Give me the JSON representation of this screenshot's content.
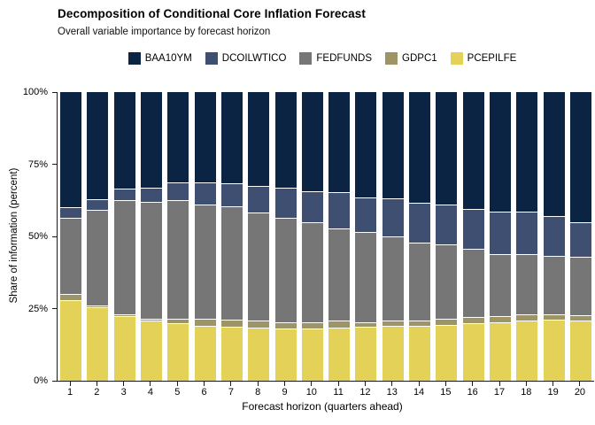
{
  "chart_data": {
    "type": "bar",
    "stacked": true,
    "stack_unit": "percent",
    "title": "Decomposition of Conditional Core Inflation Forecast",
    "subtitle": "Overall variable importance by forecast horizon",
    "xlabel": "Forecast horizon (quarters ahead)",
    "ylabel": "Share of information (percent)",
    "ylim": [
      0,
      100
    ],
    "grid": false,
    "legend_position": "top-center",
    "y_ticks": [
      {
        "label": "0%",
        "value": 0
      },
      {
        "label": "25%",
        "value": 25
      },
      {
        "label": "50%",
        "value": 50
      },
      {
        "label": "75%",
        "value": 75
      },
      {
        "label": "100%",
        "value": 100
      }
    ],
    "categories": [
      "1",
      "2",
      "3",
      "4",
      "5",
      "6",
      "7",
      "8",
      "9",
      "10",
      "11",
      "12",
      "13",
      "14",
      "15",
      "16",
      "17",
      "18",
      "19",
      "20"
    ],
    "stack_order_note": "series listed bottom-to-top of each bar",
    "series": [
      {
        "name": "PCEPILFE",
        "color": "#E3D158",
        "values": [
          28,
          25.5,
          22.5,
          20.8,
          20,
          19,
          18.7,
          18.4,
          18.1,
          18.1,
          18.4,
          18.7,
          19.1,
          19.1,
          19.4,
          19.9,
          20.1,
          21,
          21.2,
          21
        ]
      },
      {
        "name": "GDPC1",
        "color": "#9E9566",
        "values": [
          2,
          0.7,
          0.5,
          0.7,
          1.4,
          2.5,
          2.5,
          2.6,
          2.3,
          2.1,
          2.6,
          1.7,
          1.9,
          1.9,
          2.1,
          2.3,
          2.4,
          2,
          1.8,
          1.8
        ]
      },
      {
        "name": "FEDFUNDS",
        "color": "#767676",
        "values": [
          26.5,
          33,
          39.5,
          40.5,
          41.3,
          39.6,
          39.2,
          37.4,
          36.1,
          34.8,
          31.9,
          31.1,
          28.9,
          26.8,
          25.6,
          23.5,
          21.5,
          21,
          20.2,
          20.1
        ]
      },
      {
        "name": "DCOILWTICO",
        "color": "#3E4F71",
        "values": [
          3.5,
          3.8,
          4,
          5,
          6,
          7.5,
          7.9,
          9.2,
          10.3,
          10.8,
          12.3,
          12,
          13.3,
          13.8,
          14,
          13.9,
          14.5,
          14.5,
          14,
          12
        ]
      },
      {
        "name": "BAA10YM",
        "color": "#0B2443",
        "values": [
          40,
          37,
          33.5,
          33,
          31.3,
          31.4,
          31.7,
          32.4,
          33.2,
          34.2,
          34.8,
          36.5,
          36.8,
          38.4,
          38.9,
          40.4,
          41.5,
          41.5,
          42.8,
          45.1
        ]
      }
    ]
  },
  "legend": {
    "items": [
      {
        "label": "BAA10YM",
        "color": "#0B2443"
      },
      {
        "label": "DCOILWTICO",
        "color": "#3E4F71"
      },
      {
        "label": "FEDFUNDS",
        "color": "#767676"
      },
      {
        "label": "GDPC1",
        "color": "#9E9566"
      },
      {
        "label": "PCEPILFE",
        "color": "#E3D158"
      }
    ]
  },
  "axis_color": "#1a1a1a"
}
